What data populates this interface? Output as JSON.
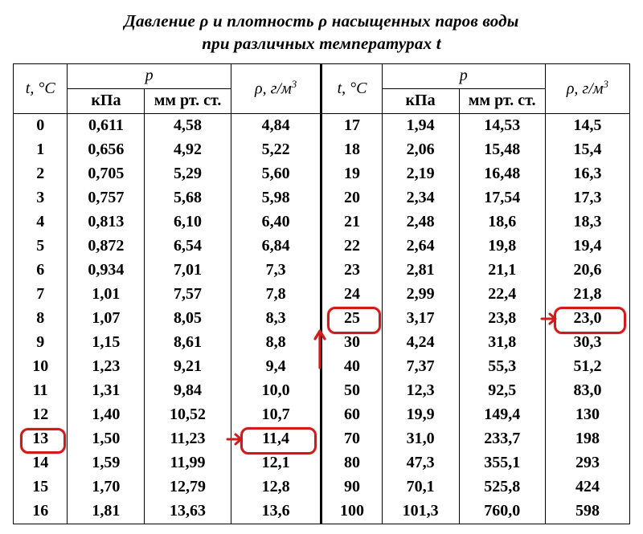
{
  "title_line1": "Давление ρ и плотность ρ насыщенных паров воды",
  "title_line2": "при различных температурах t",
  "headers": {
    "t": "t, °C",
    "p": "p",
    "kpa": "кПа",
    "mmhg": "мм рт. ст.",
    "rho": "ρ, г/м",
    "rho_sup": "3"
  },
  "highlight_color": "#d11b1b",
  "rows_left": [
    {
      "t": "0",
      "kpa": "0,611",
      "mm": "4,58",
      "rho": "4,84"
    },
    {
      "t": "1",
      "kpa": "0,656",
      "mm": "4,92",
      "rho": "5,22"
    },
    {
      "t": "2",
      "kpa": "0,705",
      "mm": "5,29",
      "rho": "5,60"
    },
    {
      "t": "3",
      "kpa": "0,757",
      "mm": "5,68",
      "rho": "5,98"
    },
    {
      "t": "4",
      "kpa": "0,813",
      "mm": "6,10",
      "rho": "6,40"
    },
    {
      "t": "5",
      "kpa": "0,872",
      "mm": "6,54",
      "rho": "6,84"
    },
    {
      "t": "6",
      "kpa": "0,934",
      "mm": "7,01",
      "rho": "7,3"
    },
    {
      "t": "7",
      "kpa": "1,01",
      "mm": "7,57",
      "rho": "7,8"
    },
    {
      "t": "8",
      "kpa": "1,07",
      "mm": "8,05",
      "rho": "8,3"
    },
    {
      "t": "9",
      "kpa": "1,15",
      "mm": "8,61",
      "rho": "8,8"
    },
    {
      "t": "10",
      "kpa": "1,23",
      "mm": "9,21",
      "rho": "9,4"
    },
    {
      "t": "11",
      "kpa": "1,31",
      "mm": "9,84",
      "rho": "10,0"
    },
    {
      "t": "12",
      "kpa": "1,40",
      "mm": "10,52",
      "rho": "10,7"
    },
    {
      "t": "13",
      "kpa": "1,50",
      "mm": "11,23",
      "rho": "11,4"
    },
    {
      "t": "14",
      "kpa": "1,59",
      "mm": "11,99",
      "rho": "12,1"
    },
    {
      "t": "15",
      "kpa": "1,70",
      "mm": "12,79",
      "rho": "12,8"
    },
    {
      "t": "16",
      "kpa": "1,81",
      "mm": "13,63",
      "rho": "13,6"
    }
  ],
  "rows_right": [
    {
      "t": "17",
      "kpa": "1,94",
      "mm": "14,53",
      "rho": "14,5"
    },
    {
      "t": "18",
      "kpa": "2,06",
      "mm": "15,48",
      "rho": "15,4"
    },
    {
      "t": "19",
      "kpa": "2,19",
      "mm": "16,48",
      "rho": "16,3"
    },
    {
      "t": "20",
      "kpa": "2,34",
      "mm": "17,54",
      "rho": "17,3"
    },
    {
      "t": "21",
      "kpa": "2,48",
      "mm": "18,6",
      "rho": "18,3"
    },
    {
      "t": "22",
      "kpa": "2,64",
      "mm": "19,8",
      "rho": "19,4"
    },
    {
      "t": "23",
      "kpa": "2,81",
      "mm": "21,1",
      "rho": "20,6"
    },
    {
      "t": "24",
      "kpa": "2,99",
      "mm": "22,4",
      "rho": "21,8"
    },
    {
      "t": "25",
      "kpa": "3,17",
      "mm": "23,8",
      "rho": "23,0"
    },
    {
      "t": "30",
      "kpa": "4,24",
      "mm": "31,8",
      "rho": "30,3"
    },
    {
      "t": "40",
      "kpa": "7,37",
      "mm": "55,3",
      "rho": "51,2"
    },
    {
      "t": "50",
      "kpa": "12,3",
      "mm": "92,5",
      "rho": "83,0"
    },
    {
      "t": "60",
      "kpa": "19,9",
      "mm": "149,4",
      "rho": "130"
    },
    {
      "t": "70",
      "kpa": "31,0",
      "mm": "233,7",
      "rho": "198"
    },
    {
      "t": "80",
      "kpa": "47,3",
      "mm": "355,1",
      "rho": "293"
    },
    {
      "t": "90",
      "kpa": "70,1",
      "mm": "525,8",
      "rho": "424"
    },
    {
      "t": "100",
      "kpa": "101,3",
      "mm": "760,0",
      "rho": "598"
    }
  ],
  "annotations": {
    "ring_t13": {
      "targets": [
        "L13-t"
      ]
    },
    "ring_rho13": {
      "targets": [
        "L13-rho"
      ]
    },
    "ring_t25": {
      "targets": [
        "R25-t"
      ]
    },
    "ring_rho23": {
      "targets": [
        "R25-rho"
      ]
    },
    "arrow_to_rho13": {
      "from_after": "L13-mm"
    },
    "arrow_to_rho23": {
      "from_after": "R25-mm"
    },
    "arrow_up_mid": {
      "near": "R40-t"
    }
  }
}
